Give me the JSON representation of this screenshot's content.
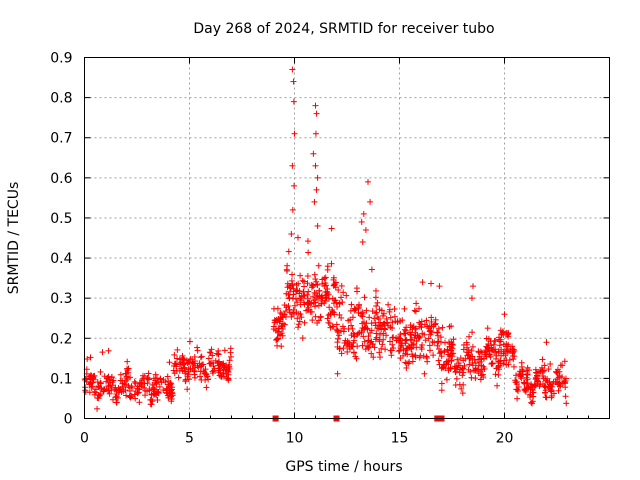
{
  "chart_data": {
    "type": "scatter",
    "title": "Day 268 of 2024, SRMTID for receiver tubo",
    "xlabel": "GPS time / hours",
    "ylabel": "SRMTID / TECUs",
    "xlim": [
      0,
      25
    ],
    "ylim": [
      0,
      0.9
    ],
    "grid": true,
    "marker": "+",
    "marker_color": "#ff0000",
    "x_ticks": [
      0,
      5,
      10,
      15,
      20
    ],
    "x_tick_labels": [
      "0",
      "5",
      "10",
      "15",
      "20"
    ],
    "y_ticks": [
      0,
      0.1,
      0.2,
      0.3,
      0.4,
      0.5,
      0.6,
      0.7,
      0.8,
      0.9
    ],
    "y_tick_labels": [
      "0",
      "0.1",
      "0.2",
      "0.3",
      "0.4",
      "0.5",
      "0.6",
      "0.7",
      "0.8",
      "0.9"
    ],
    "segments": [
      {
        "x_start": 0.0,
        "x_end": 4.2,
        "base": 0.08,
        "spread": 0.035,
        "n": 230
      },
      {
        "x_start": 4.2,
        "x_end": 7.0,
        "base": 0.13,
        "spread": 0.035,
        "n": 150
      },
      {
        "x_start": 9.0,
        "x_end": 9.6,
        "base": 0.25,
        "spread": 0.05,
        "n": 45
      },
      {
        "x_start": 9.6,
        "x_end": 12.0,
        "base": 0.3,
        "spread": 0.09,
        "n": 170
      },
      {
        "x_start": 12.0,
        "x_end": 14.6,
        "base": 0.22,
        "spread": 0.08,
        "n": 170
      },
      {
        "x_start": 14.6,
        "x_end": 17.0,
        "base": 0.2,
        "spread": 0.07,
        "n": 150
      },
      {
        "x_start": 17.0,
        "x_end": 19.2,
        "base": 0.14,
        "spread": 0.05,
        "n": 140
      },
      {
        "x_start": 19.2,
        "x_end": 20.5,
        "base": 0.17,
        "spread": 0.05,
        "n": 90
      },
      {
        "x_start": 20.5,
        "x_end": 23.0,
        "base": 0.09,
        "spread": 0.035,
        "n": 150
      }
    ],
    "peaks": [
      {
        "x": 9.9,
        "y": 0.87
      },
      {
        "x": 9.95,
        "y": 0.84
      },
      {
        "x": 9.97,
        "y": 0.79
      },
      {
        "x": 10.0,
        "y": 0.71
      },
      {
        "x": 9.9,
        "y": 0.63
      },
      {
        "x": 9.98,
        "y": 0.58
      },
      {
        "x": 9.92,
        "y": 0.52
      },
      {
        "x": 9.85,
        "y": 0.46
      },
      {
        "x": 11.0,
        "y": 0.78
      },
      {
        "x": 11.05,
        "y": 0.76
      },
      {
        "x": 11.02,
        "y": 0.71
      },
      {
        "x": 10.9,
        "y": 0.66
      },
      {
        "x": 11.0,
        "y": 0.63
      },
      {
        "x": 11.1,
        "y": 0.6
      },
      {
        "x": 11.05,
        "y": 0.57
      },
      {
        "x": 10.95,
        "y": 0.54
      },
      {
        "x": 11.1,
        "y": 0.48
      },
      {
        "x": 13.5,
        "y": 0.59
      },
      {
        "x": 13.6,
        "y": 0.54
      },
      {
        "x": 13.3,
        "y": 0.51
      },
      {
        "x": 13.2,
        "y": 0.49
      },
      {
        "x": 13.4,
        "y": 0.47
      },
      {
        "x": 13.25,
        "y": 0.44
      },
      {
        "x": 16.1,
        "y": 0.34
      },
      {
        "x": 16.9,
        "y": 0.33
      },
      {
        "x": 18.5,
        "y": 0.33
      },
      {
        "x": 18.45,
        "y": 0.3
      },
      {
        "x": 22.0,
        "y": 0.19
      },
      {
        "x": 20.0,
        "y": 0.26
      }
    ],
    "gap_markers_x": [
      9.1,
      12.0,
      16.8,
      17.0
    ]
  }
}
